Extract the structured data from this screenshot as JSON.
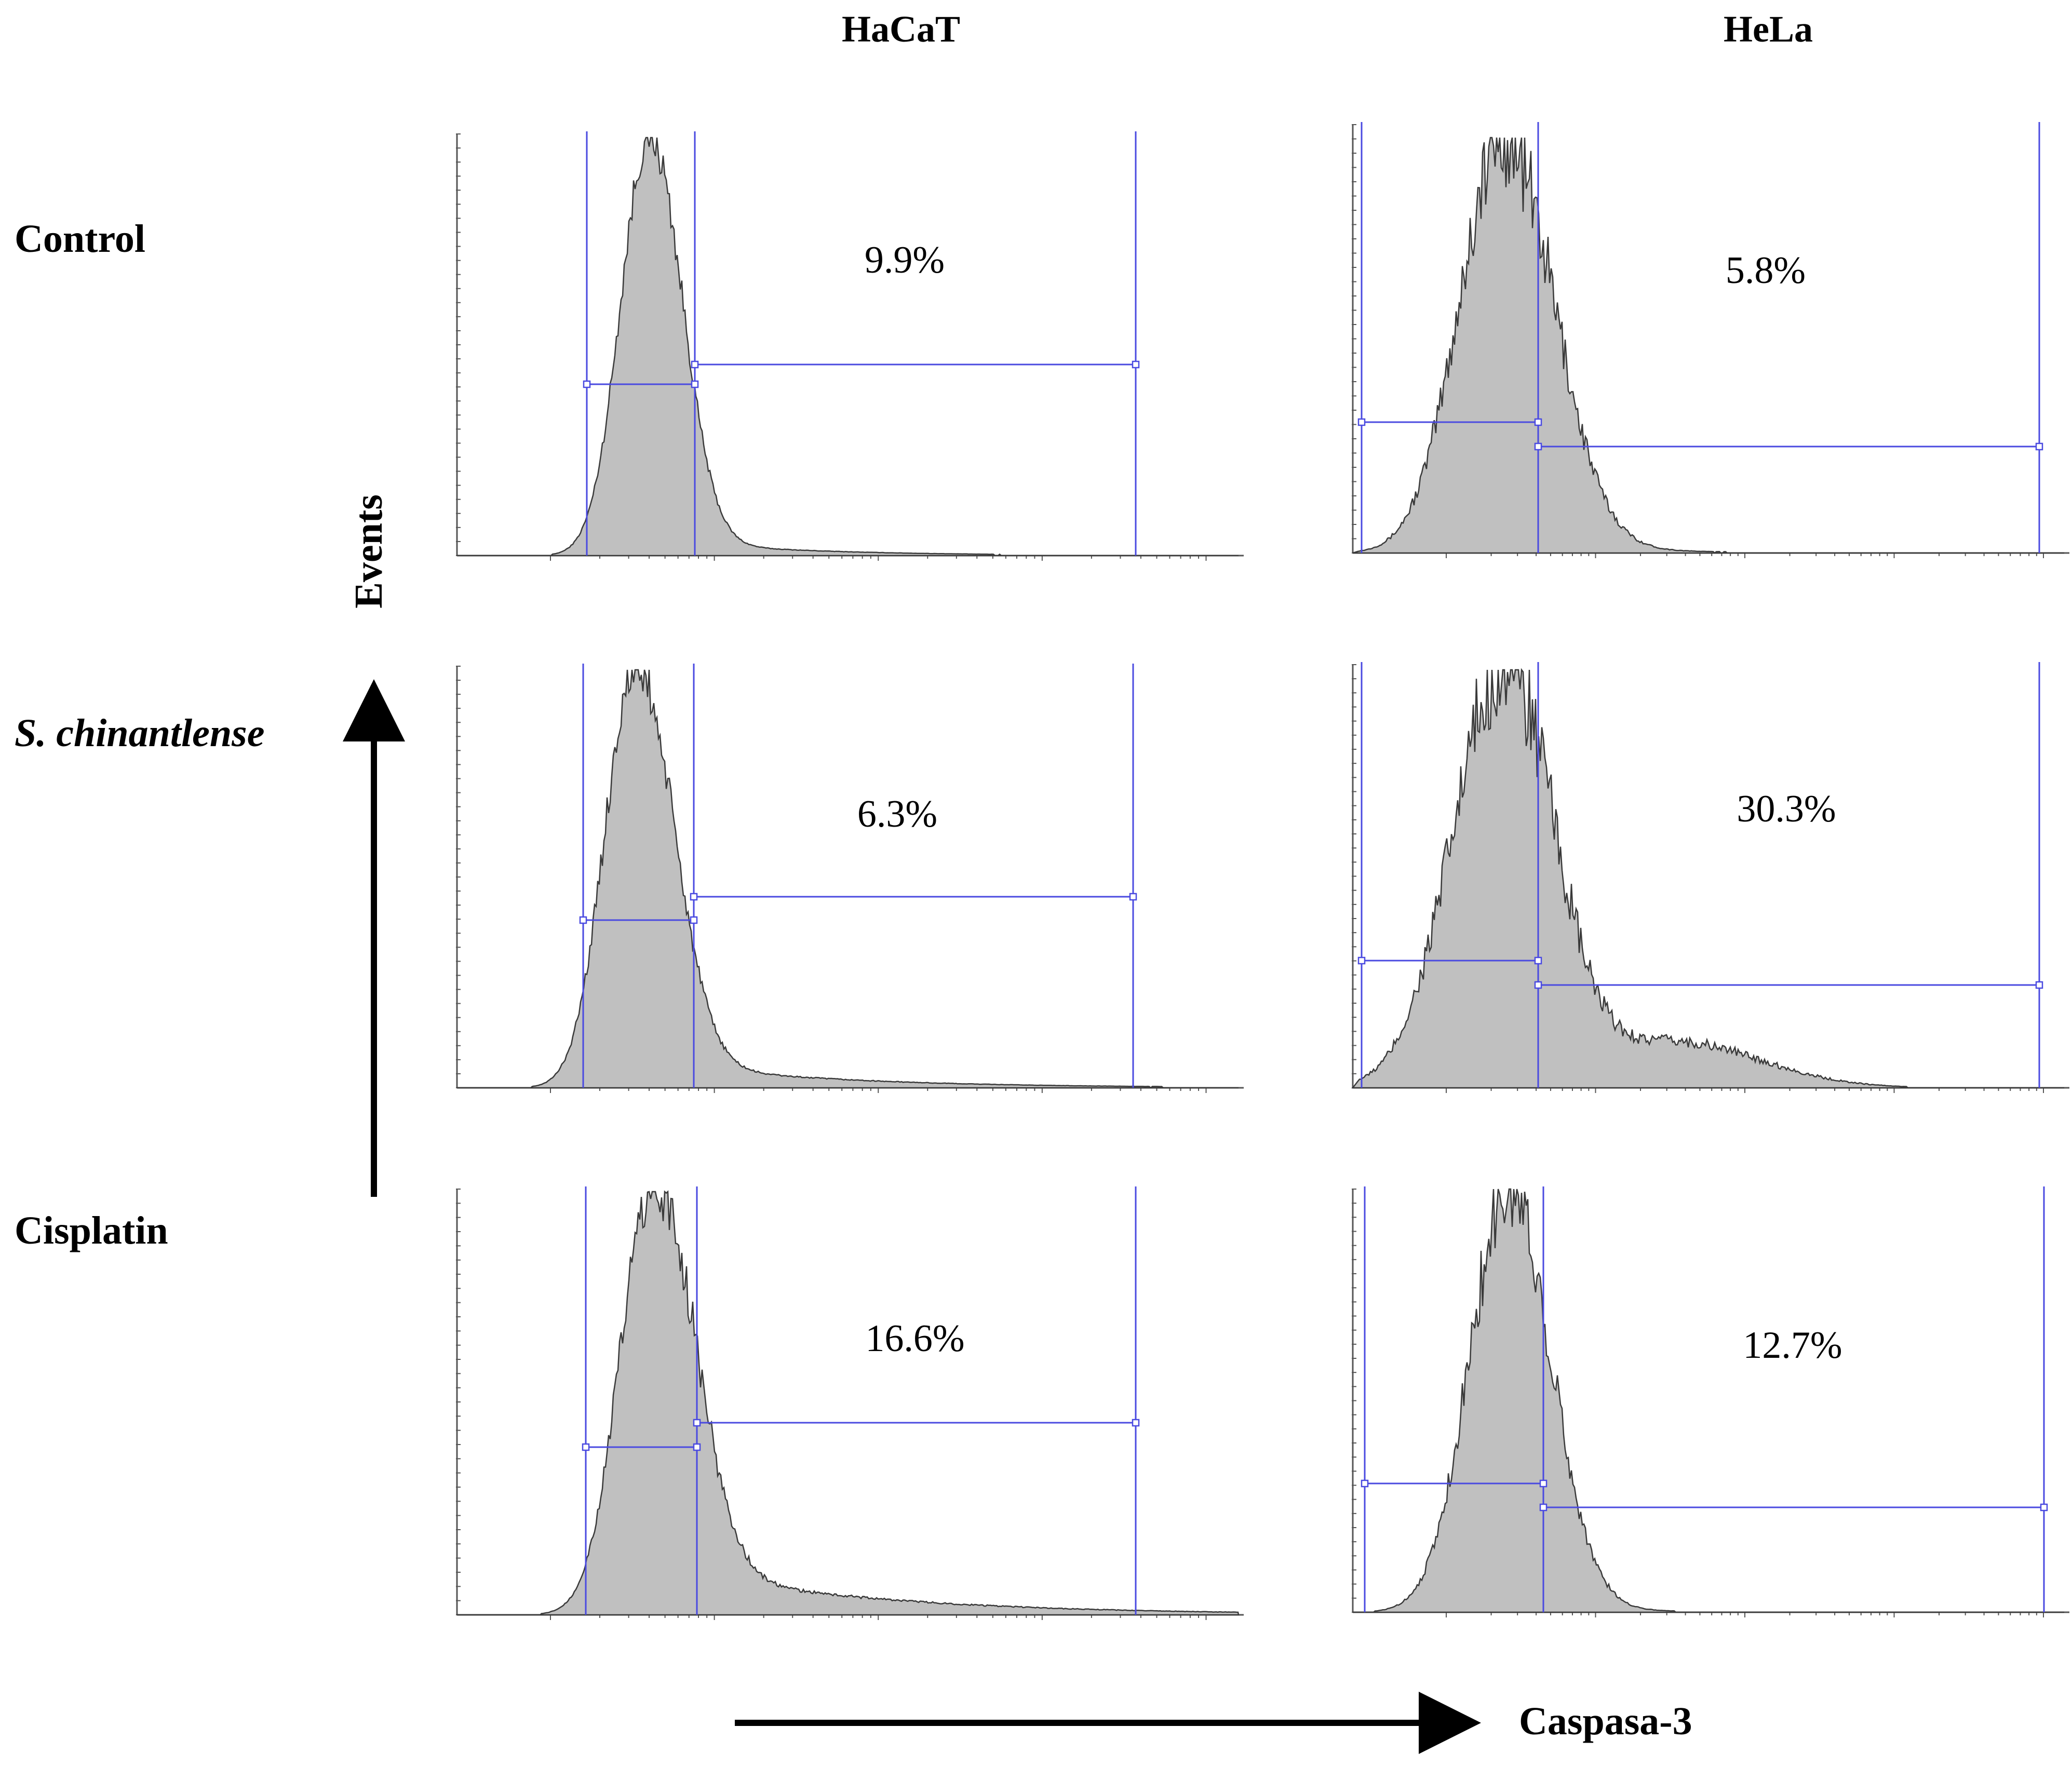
{
  "chart_data": {
    "type": "histogram",
    "title": "",
    "xlabel": "Caspasa-3",
    "ylabel": "Events",
    "x_scale": "log",
    "columns": [
      "HaCaT",
      "HeLa"
    ],
    "rows": [
      "Control",
      "S. chinantlense",
      "Cisplatin"
    ],
    "panels": [
      {
        "row": "Control",
        "column": "HaCaT",
        "gated_percent_label": "9.9%",
        "gated_percent": 9.9
      },
      {
        "row": "Control",
        "column": "HeLa",
        "gated_percent_label": "5.8%",
        "gated_percent": 5.8
      },
      {
        "row": "S. chinantlense",
        "column": "HaCaT",
        "gated_percent_label": "6.3%",
        "gated_percent": 6.3
      },
      {
        "row": "S. chinantlense",
        "column": "HeLa",
        "gated_percent_label": "30.3%",
        "gated_percent": 30.3
      },
      {
        "row": "Cisplatin",
        "column": "HaCaT",
        "gated_percent_label": "16.6%",
        "gated_percent": 16.6
      },
      {
        "row": "Cisplatin",
        "column": "HeLa",
        "gated_percent_label": "12.7%",
        "gated_percent": 12.7
      }
    ]
  },
  "colors": {
    "histogram_fill": "#c0c0c0",
    "histogram_outline": "#3a3a3a",
    "gate": "#4a4ae0",
    "axis": "#555555",
    "text": "#000000"
  }
}
